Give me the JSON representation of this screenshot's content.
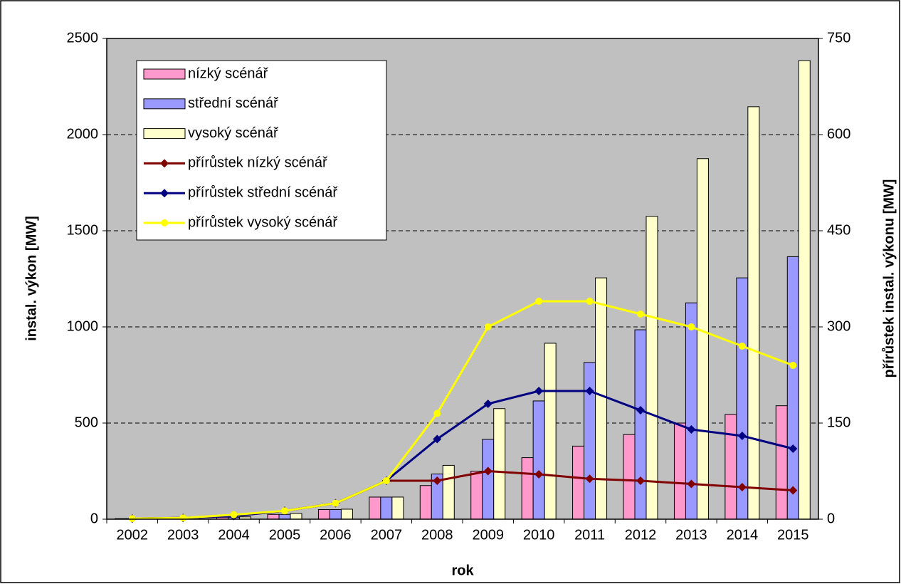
{
  "chart_data": {
    "type": "bar",
    "categories": [
      "2002",
      "2003",
      "2004",
      "2005",
      "2006",
      "2007",
      "2008",
      "2009",
      "2010",
      "2011",
      "2012",
      "2013",
      "2014",
      "2015"
    ],
    "series": [
      {
        "name": "nízký scénář",
        "type": "bar",
        "color": "#ff99cc",
        "values": [
          3,
          5,
          10,
          25,
          50,
          115,
          175,
          250,
          320,
          380,
          440,
          500,
          545,
          590
        ]
      },
      {
        "name": "střední scénář",
        "type": "bar",
        "color": "#9999ff",
        "values": [
          3,
          5,
          10,
          25,
          50,
          115,
          235,
          415,
          615,
          815,
          985,
          1125,
          1255,
          1365
        ]
      },
      {
        "name": "vysoký scénář",
        "type": "bar",
        "color": "#ffffcc",
        "values": [
          3,
          5,
          12,
          30,
          52,
          115,
          280,
          575,
          915,
          1255,
          1575,
          1875,
          2145,
          2385
        ]
      },
      {
        "name": "přírůstek nízký scénář",
        "type": "line",
        "axis": "y2",
        "marker": "diamond",
        "color": "#800000",
        "values": [
          1,
          2,
          5,
          13,
          25,
          60,
          60,
          75,
          70,
          63,
          60,
          55,
          50,
          45
        ]
      },
      {
        "name": "přírůstek střední scénář",
        "type": "line",
        "axis": "y2",
        "marker": "diamond",
        "color": "#000080",
        "values": [
          1,
          2,
          5,
          13,
          25,
          60,
          125,
          180,
          200,
          200,
          170,
          140,
          130,
          110
        ]
      },
      {
        "name": "přírůstek vysoký scénář",
        "type": "line",
        "axis": "y2",
        "marker": "circle",
        "color": "#ffff00",
        "values": [
          1,
          2,
          7,
          13,
          25,
          60,
          165,
          300,
          340,
          340,
          320,
          300,
          270,
          240
        ]
      }
    ],
    "xlabel": "rok",
    "ylabel": "instal. výkon  [MW]",
    "y2label": "přírůstek instal. výkonu  [MW]",
    "ylim": [
      0,
      2500
    ],
    "yticks": [
      0,
      500,
      1000,
      1500,
      2000,
      2500
    ],
    "y2lim": [
      0,
      750
    ],
    "y2ticks": [
      0,
      150,
      300,
      450,
      600,
      750
    ],
    "grid": true,
    "legend": "upper left",
    "plot_background": "#c0c0c0"
  }
}
